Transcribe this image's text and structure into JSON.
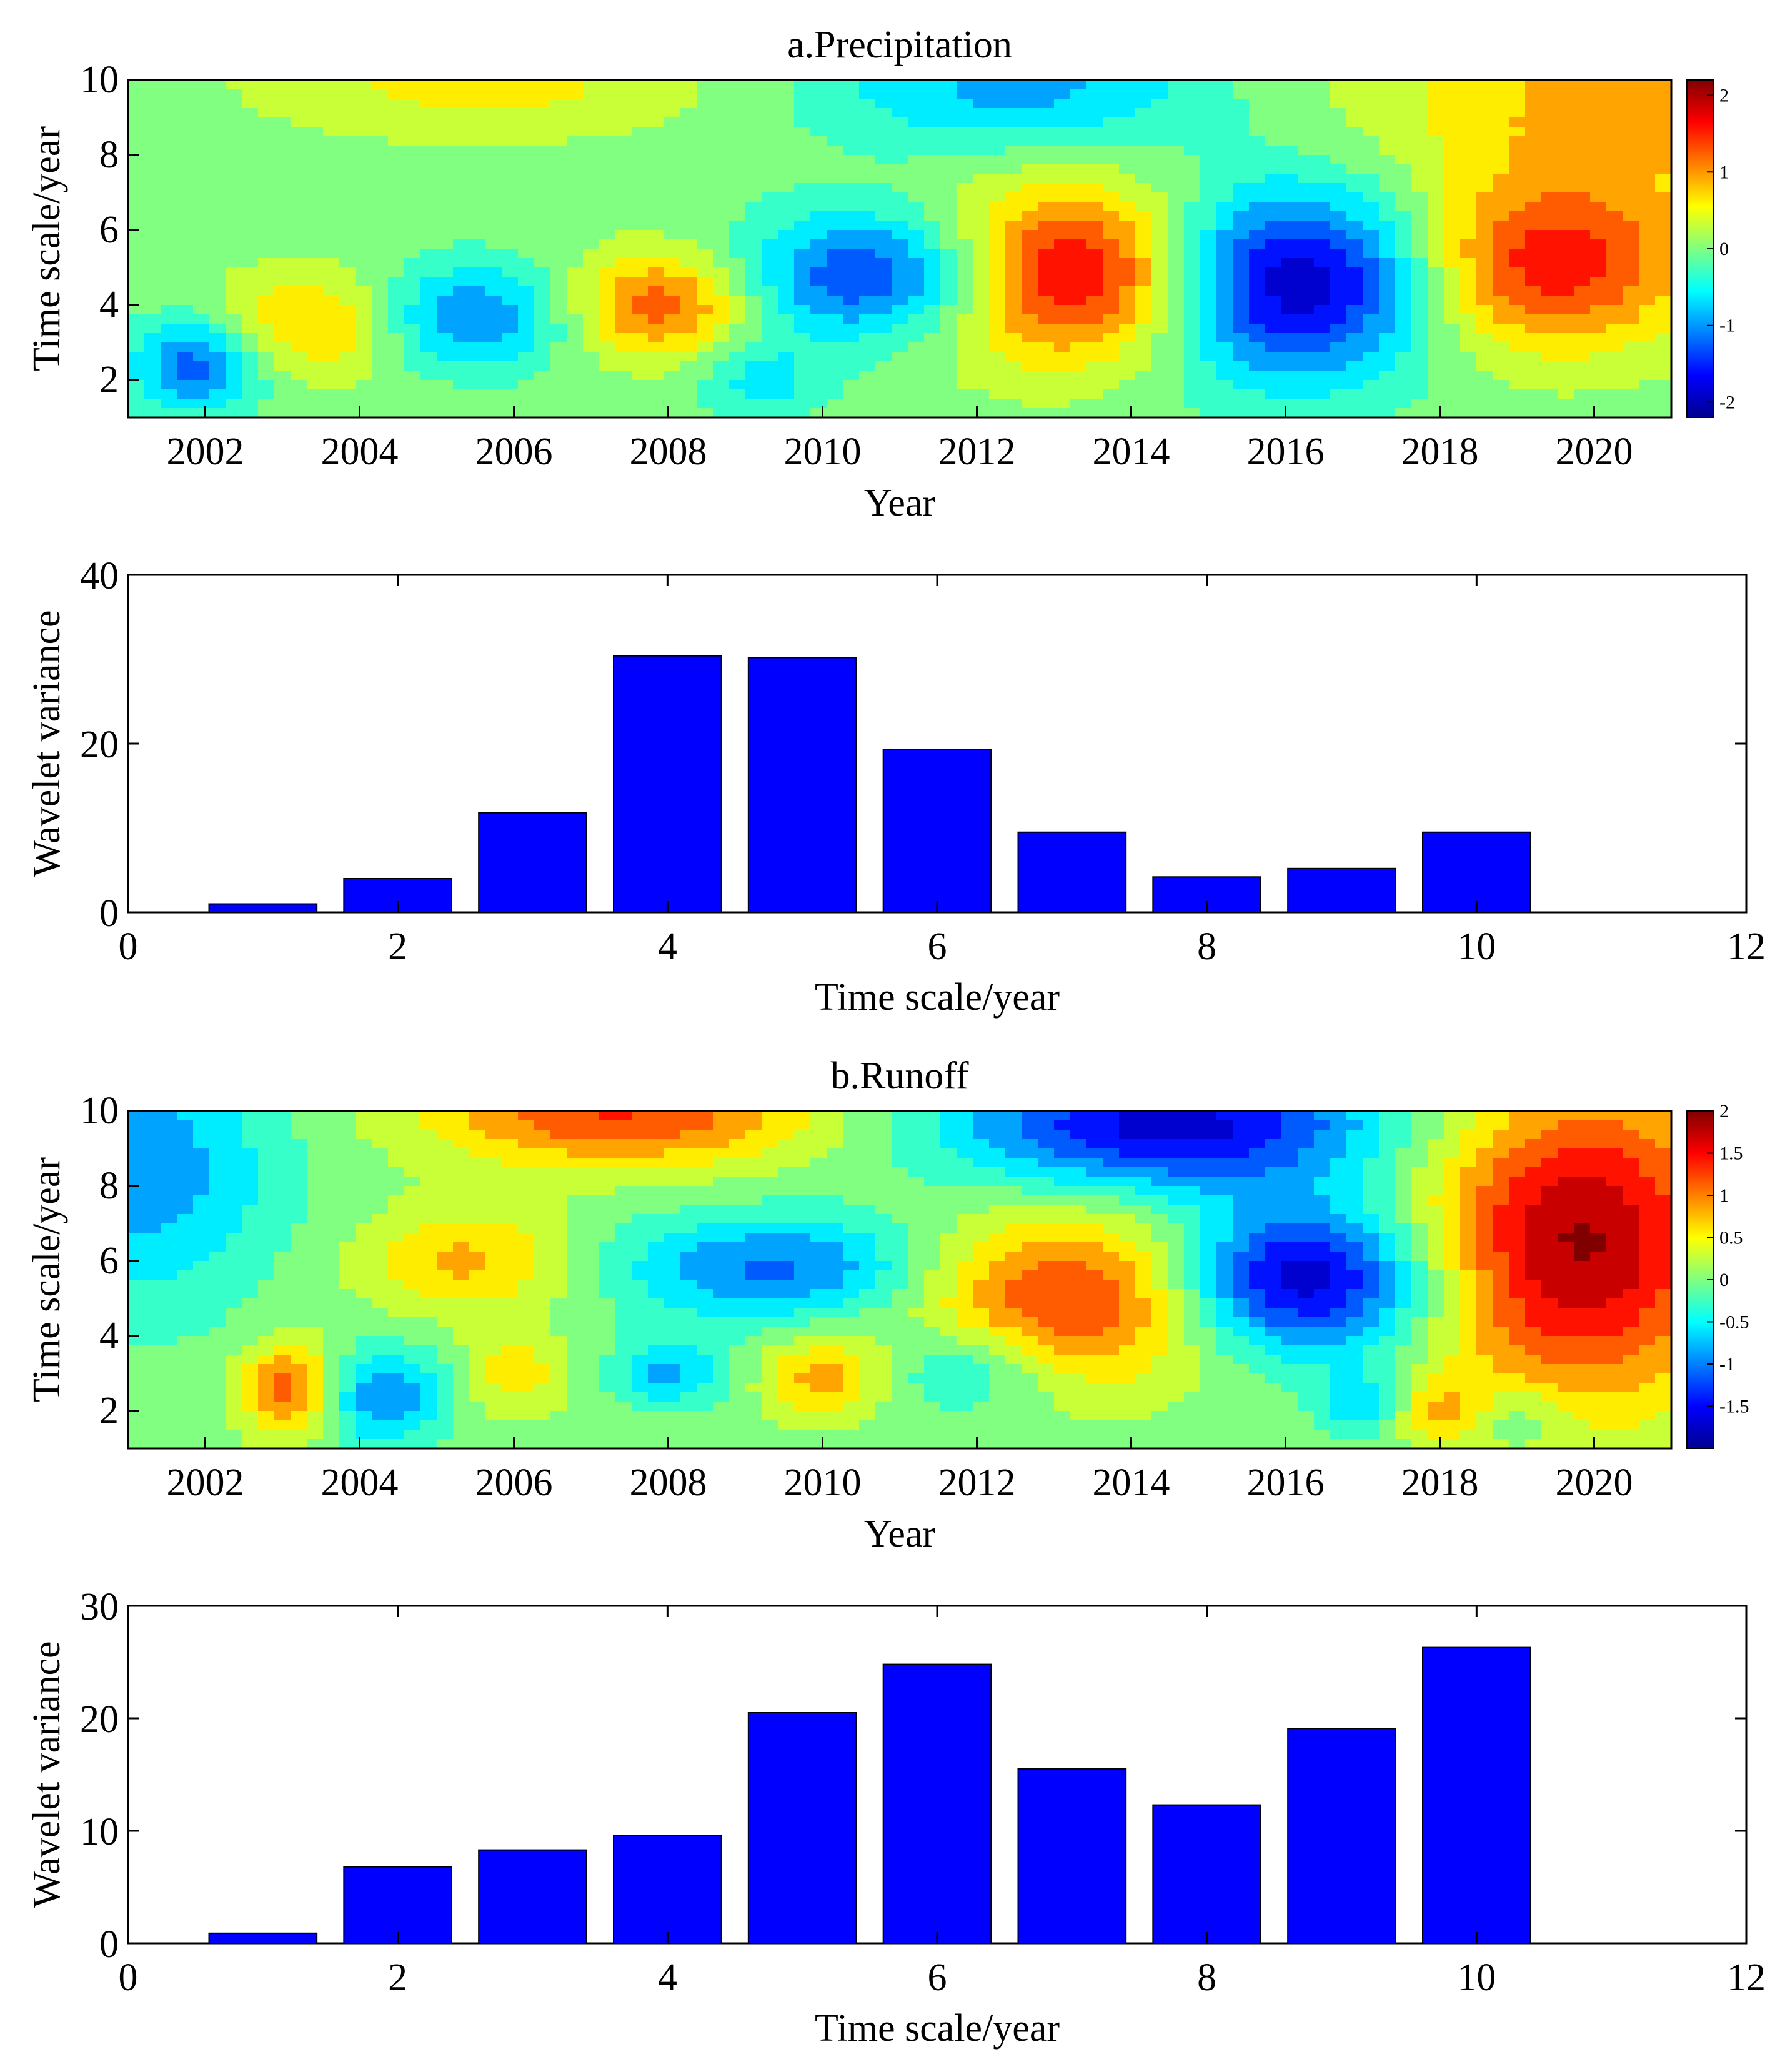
{
  "chart_data": [
    {
      "type": "heatmap",
      "title": "a.Precipitation",
      "xlabel": "Year",
      "ylabel": "Time scale/year",
      "x_ticks": [
        "2002",
        "2004",
        "2006",
        "2008",
        "2010",
        "2012",
        "2014",
        "2016",
        "2018",
        "2020"
      ],
      "y_ticks": [
        "2",
        "4",
        "6",
        "8",
        "10"
      ],
      "xlim": [
        2001,
        2021
      ],
      "ylim": [
        1,
        10
      ],
      "colorbar": {
        "ticks": [
          "2",
          "1",
          "0",
          "-1",
          "-2"
        ],
        "values": [
          2,
          1,
          0,
          -1,
          -2
        ],
        "range": [
          -2.2,
          2.2
        ]
      },
      "features": [
        {
          "x": 2013.2,
          "y": 4.8,
          "value": 2.0,
          "sx": 1.3,
          "sy": 1.6
        },
        {
          "x": 2016.1,
          "y": 4.6,
          "value": -2.1,
          "sx": 1.3,
          "sy": 1.8
        },
        {
          "x": 2010.8,
          "y": 4.8,
          "value": -1.6,
          "sx": 1.2,
          "sy": 1.2
        },
        {
          "x": 2019.4,
          "y": 5.0,
          "value": 1.6,
          "sx": 1.3,
          "sy": 1.6
        },
        {
          "x": 2007.9,
          "y": 4.0,
          "value": 1.3,
          "sx": 0.8,
          "sy": 1.0
        },
        {
          "x": 2003.4,
          "y": 3.5,
          "value": 0.9,
          "sx": 0.9,
          "sy": 1.0
        },
        {
          "x": 2005.4,
          "y": 3.7,
          "value": -1.1,
          "sx": 0.9,
          "sy": 1.0
        },
        {
          "x": 2001.9,
          "y": 2.4,
          "value": -1.3,
          "sx": 0.6,
          "sy": 0.9
        },
        {
          "x": 2020.5,
          "y": 9.5,
          "value": 0.9,
          "sx": 2.5,
          "sy": 2.0
        },
        {
          "x": 2012.5,
          "y": 9.8,
          "value": -0.9,
          "sx": 1.8,
          "sy": 1.2
        },
        {
          "x": 2005.6,
          "y": 9.9,
          "value": 0.6,
          "sx": 2.0,
          "sy": 1.0
        },
        {
          "x": 2009.2,
          "y": 2.0,
          "value": -0.6,
          "sx": 0.6,
          "sy": 0.8
        }
      ]
    },
    {
      "type": "bar",
      "xlabel": "Time scale/year",
      "ylabel": "Wavelet variance",
      "x": [
        1,
        2,
        3,
        4,
        5,
        6,
        7,
        8,
        9,
        10
      ],
      "values": [
        1.0,
        4.0,
        11.8,
        30.4,
        30.2,
        19.3,
        9.5,
        4.2,
        5.2,
        9.5
      ],
      "xlim": [
        0,
        12
      ],
      "ylim": [
        0,
        40
      ],
      "x_ticks": [
        "0",
        "2",
        "4",
        "6",
        "8",
        "10",
        "12"
      ],
      "y_ticks": [
        "0",
        "20",
        "40"
      ]
    },
    {
      "type": "heatmap",
      "title": "b.Runoff",
      "xlabel": "Year",
      "ylabel": "Time scale/year",
      "x_ticks": [
        "2002",
        "2004",
        "2006",
        "2008",
        "2010",
        "2012",
        "2014",
        "2016",
        "2018",
        "2020"
      ],
      "y_ticks": [
        "2",
        "4",
        "6",
        "8",
        "10"
      ],
      "xlim": [
        2001,
        2021
      ],
      "ylim": [
        1,
        10
      ],
      "colorbar": {
        "ticks": [
          "2",
          "1.5",
          "1",
          "0.5",
          "0",
          "-0.5",
          "-1",
          "-1.5"
        ],
        "values": [
          2,
          1.5,
          1,
          0.5,
          0,
          -0.5,
          -1,
          -1.5
        ],
        "range": [
          -2.0,
          2.0
        ]
      },
      "features": [
        {
          "x": 2019.8,
          "y": 6.5,
          "value": 1.9,
          "sx": 1.4,
          "sy": 3.0
        },
        {
          "x": 2016.2,
          "y": 5.5,
          "value": -1.9,
          "sx": 1.2,
          "sy": 1.4
        },
        {
          "x": 2014.5,
          "y": 9.6,
          "value": -1.7,
          "sx": 2.0,
          "sy": 1.2
        },
        {
          "x": 2013.2,
          "y": 5.0,
          "value": 1.4,
          "sx": 1.5,
          "sy": 1.6
        },
        {
          "x": 2007.4,
          "y": 9.9,
          "value": 1.3,
          "sx": 1.8,
          "sy": 1.0
        },
        {
          "x": 2009.5,
          "y": 5.8,
          "value": -1.1,
          "sx": 1.5,
          "sy": 1.0
        },
        {
          "x": 2005.4,
          "y": 6.0,
          "value": 0.8,
          "sx": 1.0,
          "sy": 1.0
        },
        {
          "x": 2001.2,
          "y": 8.5,
          "value": -0.9,
          "sx": 1.2,
          "sy": 2.5
        },
        {
          "x": 2003.1,
          "y": 2.6,
          "value": 1.2,
          "sx": 0.45,
          "sy": 0.9
        },
        {
          "x": 2004.3,
          "y": 2.4,
          "value": -1.0,
          "sx": 0.6,
          "sy": 0.9
        },
        {
          "x": 2006.0,
          "y": 3.0,
          "value": 0.6,
          "sx": 0.5,
          "sy": 0.8
        },
        {
          "x": 2010.0,
          "y": 2.9,
          "value": 0.8,
          "sx": 0.55,
          "sy": 0.8
        },
        {
          "x": 2008.0,
          "y": 3.0,
          "value": -0.8,
          "sx": 0.5,
          "sy": 0.6
        },
        {
          "x": 2011.9,
          "y": 3.2,
          "value": -0.7,
          "sx": 0.8,
          "sy": 0.9
        },
        {
          "x": 2018.0,
          "y": 2.0,
          "value": 0.6,
          "sx": 0.4,
          "sy": 0.6
        },
        {
          "x": 2017.0,
          "y": 2.2,
          "value": -0.7,
          "sx": 0.4,
          "sy": 0.6
        },
        {
          "x": 2019.1,
          "y": 1.8,
          "value": -0.4,
          "sx": 0.5,
          "sy": 0.6
        }
      ]
    },
    {
      "type": "bar",
      "xlabel": "Time scale/year",
      "ylabel": "Wavelet variance",
      "x": [
        1,
        2,
        3,
        4,
        5,
        6,
        7,
        8,
        9,
        10
      ],
      "values": [
        0.9,
        6.8,
        8.3,
        9.6,
        20.5,
        24.8,
        15.5,
        12.3,
        19.1,
        26.3
      ],
      "xlim": [
        0,
        12
      ],
      "ylim": [
        0,
        30
      ],
      "x_ticks": [
        "0",
        "2",
        "4",
        "6",
        "8",
        "10",
        "12"
      ],
      "y_ticks": [
        "0",
        "10",
        "20",
        "30"
      ]
    }
  ],
  "colors": {
    "bar_fill": "#0000ff",
    "jet": [
      "#00008f",
      "#0000ff",
      "#0080ff",
      "#00ffff",
      "#80ff80",
      "#ffff00",
      "#ff8000",
      "#ff0000",
      "#800000"
    ]
  }
}
